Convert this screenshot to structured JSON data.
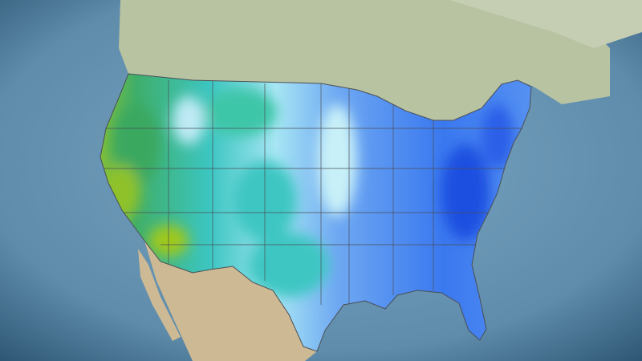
{
  "map": {
    "type": "precipitation-forecast",
    "region": "contiguous-united-states",
    "colors": {
      "ocean": "#6b97b5",
      "ocean_edge": "#2c5573",
      "canada": "#b8c3a2",
      "mexico": "#cdb994",
      "state_lines": "#4a4f55",
      "scale": [
        "#a6c81a",
        "#3fae6a",
        "#3cc6c2",
        "#a8e6f4",
        "#6fa9f2",
        "#3a78ef",
        "#1f4fe0"
      ]
    }
  }
}
